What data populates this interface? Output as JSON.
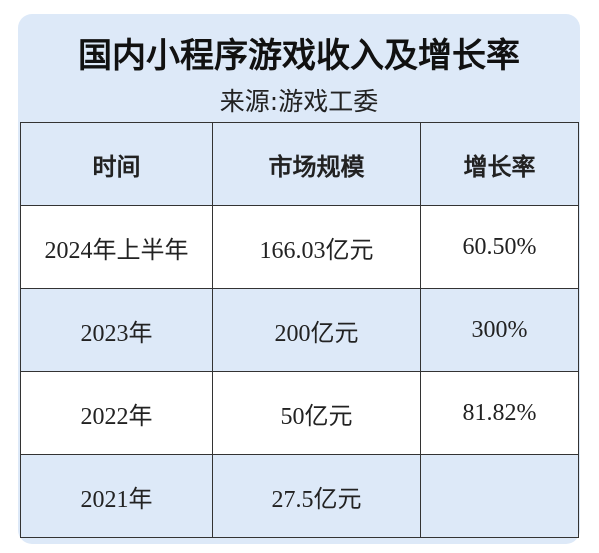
{
  "header": {
    "title": "国内小程序游戏收入及增长率",
    "subtitle": "来源:游戏工委"
  },
  "table": {
    "columns": [
      "时间",
      "市场规模",
      "增长率"
    ],
    "rows": [
      [
        "2024年上半年",
        "166.03亿元",
        "60.50%"
      ],
      [
        "2023年",
        "200亿元",
        "300%"
      ],
      [
        "2022年",
        "50亿元",
        "81.82%"
      ],
      [
        "2021年",
        "27.5亿元"
      ]
    ]
  }
}
